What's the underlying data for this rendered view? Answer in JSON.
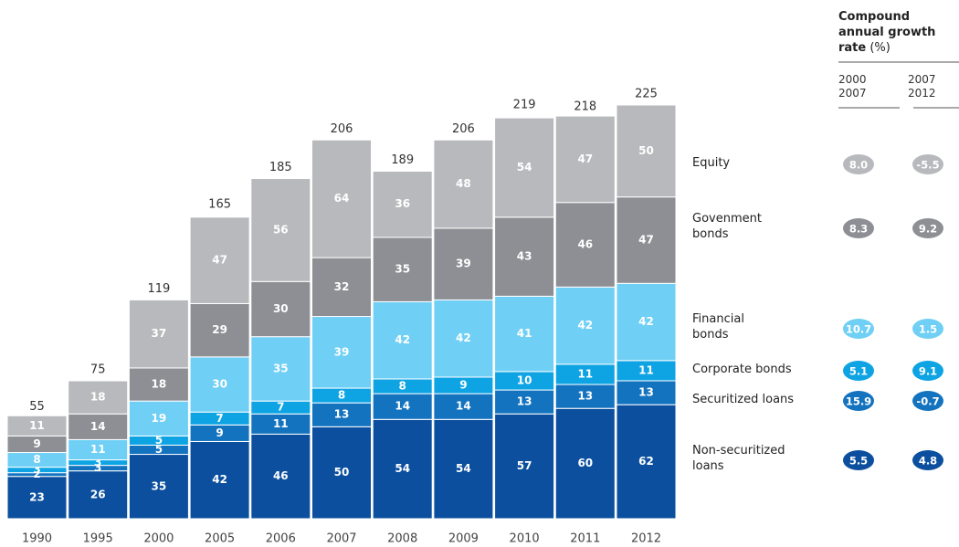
{
  "chart_data": {
    "type": "stacked_bar",
    "categories": [
      "1990",
      "1995",
      "2000",
      "2005",
      "2006",
      "2007",
      "2008",
      "2009",
      "2010",
      "2011",
      "2012"
    ],
    "series": [
      {
        "name": "Non-securitized loans",
        "color": "#0b4f9e",
        "values": [
          23,
          26,
          35,
          42,
          46,
          50,
          54,
          54,
          57,
          60,
          62
        ],
        "cagr": [
          "5.5",
          "4.8"
        ]
      },
      {
        "name": "Securitized loans",
        "color": "#1473bf",
        "values": [
          2,
          3,
          5,
          9,
          11,
          13,
          14,
          14,
          13,
          13,
          13
        ],
        "cagr": [
          "15.9",
          "-0.7"
        ]
      },
      {
        "name": "Corporate bonds",
        "color": "#0ea4e4",
        "values": [
          3,
          3,
          5,
          7,
          7,
          8,
          8,
          9,
          10,
          11,
          11
        ],
        "cagr": [
          "5.1",
          "9.1"
        ]
      },
      {
        "name": "Financial bonds",
        "color": "#6fcff5",
        "values": [
          8,
          11,
          19,
          30,
          35,
          39,
          42,
          42,
          41,
          42,
          42
        ],
        "cagr": [
          "10.7",
          "1.5"
        ]
      },
      {
        "name": "Govenment bonds",
        "color": "#8d8f94",
        "values": [
          9,
          14,
          18,
          29,
          30,
          32,
          35,
          39,
          43,
          46,
          47
        ],
        "cagr": [
          "8.3",
          "9.2"
        ]
      },
      {
        "name": "Equity",
        "color": "#b8b9bc",
        "values": [
          11,
          18,
          37,
          47,
          56,
          64,
          36,
          48,
          54,
          47,
          50
        ],
        "cagr": [
          "8.0",
          "-5.5"
        ]
      }
    ],
    "totals": [
      55,
      75,
      119,
      165,
      185,
      206,
      189,
      206,
      219,
      218,
      225
    ],
    "cagr_title": "Compound annual growth rate",
    "cagr_unit": "(%)",
    "cagr_periods": [
      [
        "2000",
        "2007"
      ],
      [
        "2007",
        "2012"
      ]
    ]
  }
}
